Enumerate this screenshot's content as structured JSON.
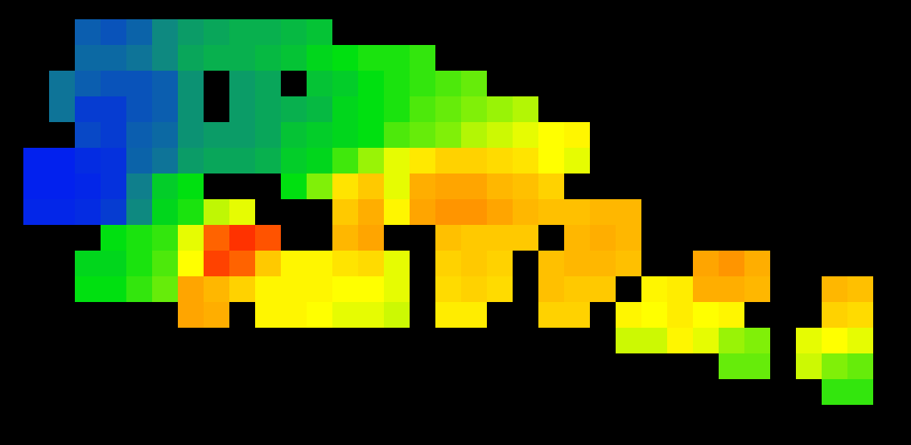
{
  "chart_data": {
    "type": "heatmap",
    "tick_labels": false,
    "zlim": [
      0,
      100
    ],
    "cells": [
      [
        null,
        null,
        14,
        12,
        15,
        22,
        26,
        28,
        30,
        30,
        32,
        34,
        null,
        null,
        null,
        null,
        null,
        null,
        null,
        null,
        null,
        null,
        null,
        null,
        null,
        null,
        null,
        null,
        null,
        null,
        null,
        null,
        null
      ],
      [
        null,
        null,
        16,
        16,
        18,
        22,
        28,
        30,
        30,
        32,
        34,
        38,
        40,
        42,
        42,
        44,
        null,
        null,
        null,
        null,
        null,
        null,
        null,
        null,
        null,
        null,
        null,
        null,
        null,
        null,
        null,
        null,
        null
      ],
      [
        null,
        18,
        14,
        12,
        12,
        14,
        24,
        null,
        26,
        28,
        null,
        34,
        36,
        40,
        42,
        44,
        46,
        48,
        null,
        null,
        null,
        null,
        null,
        null,
        null,
        null,
        null,
        null,
        null,
        null,
        null,
        null,
        null
      ],
      [
        null,
        18,
        8,
        8,
        12,
        14,
        24,
        null,
        26,
        28,
        30,
        32,
        38,
        40,
        42,
        46,
        48,
        50,
        52,
        54,
        null,
        null,
        null,
        null,
        null,
        null,
        null,
        null,
        null,
        null,
        null,
        null,
        null
      ],
      [
        null,
        null,
        10,
        8,
        14,
        16,
        24,
        26,
        26,
        28,
        34,
        36,
        38,
        40,
        46,
        48,
        50,
        54,
        56,
        58,
        60,
        62,
        null,
        null,
        null,
        null,
        null,
        null,
        null,
        null,
        null,
        null,
        null
      ],
      [
        3,
        3,
        5,
        6,
        15,
        18,
        26,
        28,
        28,
        30,
        36,
        38,
        45,
        52,
        58,
        65,
        70,
        70,
        68,
        66,
        60,
        58,
        null,
        null,
        null,
        null,
        null,
        null,
        null,
        null,
        null,
        null,
        null
      ],
      [
        3,
        3,
        4,
        6,
        20,
        36,
        40,
        null,
        null,
        null,
        40,
        50,
        66,
        72,
        58,
        78,
        80,
        80,
        76,
        74,
        70,
        null,
        null,
        null,
        null,
        null,
        null,
        null,
        null,
        null,
        null,
        null,
        null
      ],
      [
        4,
        4,
        5,
        8,
        22,
        38,
        42,
        55,
        58,
        null,
        null,
        null,
        72,
        78,
        62,
        80,
        82,
        82,
        80,
        76,
        74,
        74,
        76,
        76,
        null,
        null,
        null,
        null,
        null,
        null,
        null,
        null,
        null
      ],
      [
        null,
        null,
        null,
        40,
        42,
        44,
        58,
        88,
        94,
        90,
        null,
        null,
        76,
        80,
        null,
        null,
        74,
        72,
        72,
        72,
        null,
        76,
        78,
        76,
        null,
        null,
        null,
        null,
        null,
        null,
        null,
        null,
        null
      ],
      [
        null,
        null,
        38,
        38,
        42,
        46,
        60,
        92,
        88,
        72,
        62,
        62,
        66,
        68,
        58,
        null,
        70,
        72,
        70,
        null,
        74,
        76,
        76,
        74,
        null,
        null,
        80,
        82,
        78,
        null,
        null,
        null,
        null
      ],
      [
        null,
        null,
        40,
        40,
        44,
        48,
        80,
        76,
        70,
        62,
        62,
        62,
        60,
        60,
        58,
        null,
        68,
        70,
        68,
        null,
        74,
        72,
        72,
        null,
        62,
        64,
        78,
        78,
        76,
        null,
        null,
        76,
        74
      ],
      [
        null,
        null,
        null,
        null,
        null,
        null,
        80,
        78,
        null,
        62,
        62,
        60,
        58,
        58,
        56,
        null,
        64,
        64,
        null,
        null,
        70,
        70,
        null,
        62,
        60,
        64,
        60,
        62,
        null,
        null,
        null,
        70,
        68
      ],
      [
        null,
        null,
        null,
        null,
        null,
        null,
        null,
        null,
        null,
        null,
        null,
        null,
        null,
        null,
        null,
        null,
        null,
        null,
        null,
        null,
        null,
        null,
        null,
        56,
        56,
        62,
        58,
        52,
        50,
        null,
        58,
        60,
        58
      ],
      [
        null,
        null,
        null,
        null,
        null,
        null,
        null,
        null,
        null,
        null,
        null,
        null,
        null,
        null,
        null,
        null,
        null,
        null,
        null,
        null,
        null,
        null,
        null,
        null,
        null,
        null,
        null,
        48,
        48,
        null,
        56,
        50,
        48
      ],
      [
        null,
        null,
        null,
        null,
        null,
        null,
        null,
        null,
        null,
        null,
        null,
        null,
        null,
        null,
        null,
        null,
        null,
        null,
        null,
        null,
        null,
        null,
        null,
        null,
        null,
        null,
        null,
        null,
        null,
        null,
        null,
        44,
        44
      ]
    ]
  }
}
